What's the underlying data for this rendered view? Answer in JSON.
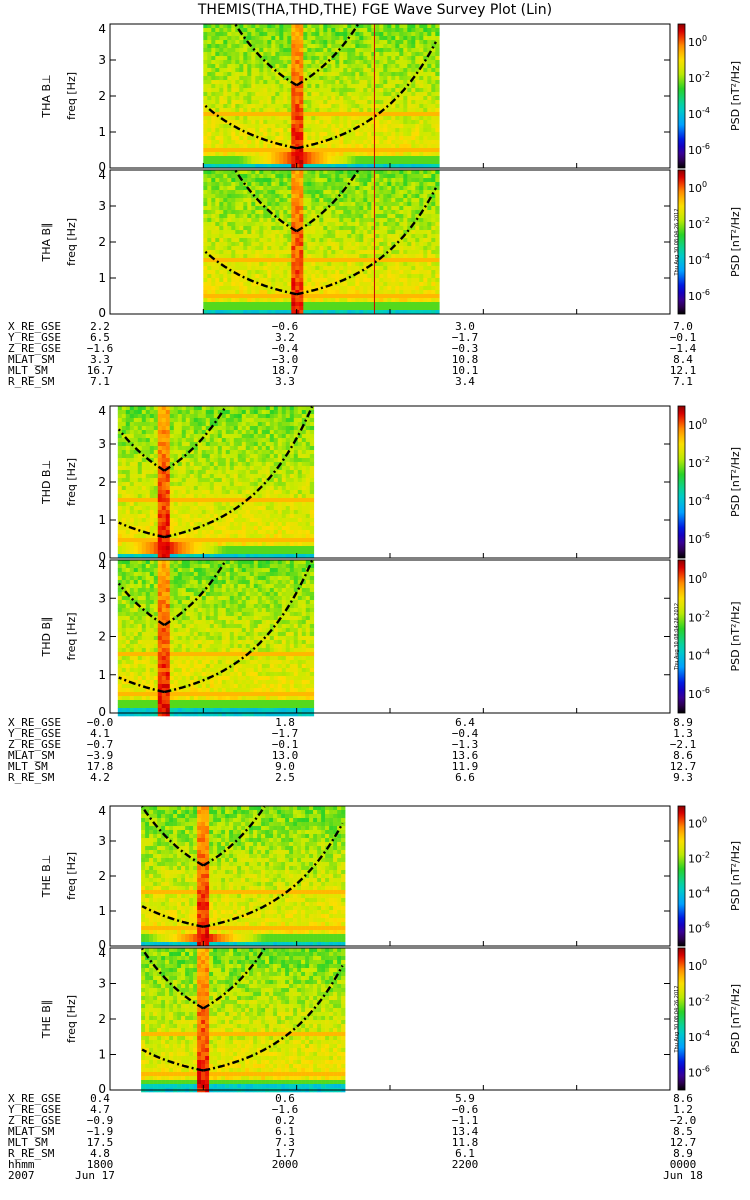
{
  "title": "THEMIS(THA,THD,THE) FGE Wave Survey Plot (Lin)",
  "colors": {
    "low": "#00c8c8",
    "mid": "#9ae600",
    "high": "#ffd200",
    "peak": "#e60000",
    "dark": "#7a0000"
  },
  "colorbar": {
    "label": "PSD [nT²/Hz]",
    "ticks": [
      {
        "base": "10",
        "exp": "0",
        "value": 0
      },
      {
        "base": "10",
        "exp": "-2",
        "value": -2
      },
      {
        "base": "10",
        "exp": "-4",
        "value": -4
      },
      {
        "base": "10",
        "exp": "-6",
        "value": -6
      }
    ],
    "stamp": "Thu Aug 30 08:04:26 2012"
  },
  "time_axis": {
    "start_hhmm": 1800,
    "end_hhmm": 2400,
    "tick_labels": [
      "1800",
      "2000",
      "2200",
      "0000"
    ],
    "row_label": "hhmm",
    "year_label": "2007",
    "date_start": "Jun 17",
    "date_end": "Jun 18"
  },
  "chart_data": [
    {
      "type": "heatmap",
      "ylabel": "THA B⊥",
      "ylabel2": "freq [Hz]",
      "ylim": [
        0,
        4
      ],
      "yticks": [
        "0",
        "1",
        "2",
        "3",
        "4"
      ],
      "data_span_hhmm": [
        1900,
        2130
      ],
      "lobe_center_hhmm": 2000,
      "spike_hhmm": 2000,
      "marker_hhmm": 2050,
      "colorbar_range": [
        -7,
        1
      ]
    },
    {
      "type": "heatmap",
      "ylabel": "THA B∥",
      "ylabel2": "freq [Hz]",
      "ylim": [
        0,
        4
      ],
      "yticks": [
        "0",
        "1",
        "2",
        "3",
        "4"
      ],
      "data_span_hhmm": [
        1900,
        2130
      ],
      "lobe_center_hhmm": 2000,
      "spike_hhmm": 2000,
      "marker_hhmm": 2050,
      "colorbar_range": [
        -7,
        1
      ]
    },
    {
      "type": "heatmap",
      "ylabel": "THD B⊥",
      "ylabel2": "freq [Hz]",
      "ylim": [
        0,
        4
      ],
      "yticks": [
        "0",
        "1",
        "2",
        "3",
        "4"
      ],
      "data_span_hhmm": [
        1805,
        2010
      ],
      "lobe_center_hhmm": 1835,
      "spike_hhmm": 1835,
      "colorbar_range": [
        -7,
        1
      ]
    },
    {
      "type": "heatmap",
      "ylabel": "THD B∥",
      "ylabel2": "freq [Hz]",
      "ylim": [
        0,
        4
      ],
      "yticks": [
        "0",
        "1",
        "2",
        "3",
        "4"
      ],
      "data_span_hhmm": [
        1805,
        2010
      ],
      "lobe_center_hhmm": 1835,
      "spike_hhmm": 1835,
      "colorbar_range": [
        -7,
        1
      ]
    },
    {
      "type": "heatmap",
      "ylabel": "THE B⊥",
      "ylabel2": "freq [Hz]",
      "ylim": [
        0,
        4
      ],
      "yticks": [
        "0",
        "1",
        "2",
        "3",
        "4"
      ],
      "data_span_hhmm": [
        1820,
        2030
      ],
      "lobe_center_hhmm": 1900,
      "spike_hhmm": 1900,
      "colorbar_range": [
        -7,
        1
      ]
    },
    {
      "type": "heatmap",
      "ylabel": "THE B∥",
      "ylabel2": "freq [Hz]",
      "ylim": [
        0,
        4
      ],
      "yticks": [
        "0",
        "1",
        "2",
        "3",
        "4"
      ],
      "data_span_hhmm": [
        1820,
        2030
      ],
      "lobe_center_hhmm": 1900,
      "spike_hhmm": 1900,
      "colorbar_range": [
        -7,
        1
      ]
    }
  ],
  "ephemeris": [
    {
      "rows": [
        {
          "label": "X_RE_GSE",
          "values": [
            "2.2",
            "−0.6",
            "3.0",
            "7.0"
          ]
        },
        {
          "label": "Y_RE_GSE",
          "values": [
            "6.5",
            "3.2",
            "−1.7",
            "−0.1"
          ]
        },
        {
          "label": "Z_RE_GSE",
          "values": [
            "−1.6",
            "−0.4",
            "−0.3",
            "−1.4"
          ]
        },
        {
          "label": "MLAT_SM",
          "values": [
            "3.3",
            "−3.0",
            "10.8",
            "8.4"
          ]
        },
        {
          "label": "MLT_SM",
          "values": [
            "16.7",
            "18.7",
            "10.1",
            "12.1"
          ]
        },
        {
          "label": "R_RE_SM",
          "values": [
            "7.1",
            "3.3",
            "3.4",
            "7.1"
          ]
        }
      ]
    },
    {
      "rows": [
        {
          "label": "X_RE_GSE",
          "values": [
            "−0.0",
            "1.8",
            "6.4",
            "8.9"
          ]
        },
        {
          "label": "Y_RE_GSE",
          "values": [
            "4.1",
            "−1.7",
            "−0.4",
            "1.3"
          ]
        },
        {
          "label": "Z_RE_GSE",
          "values": [
            "−0.7",
            "−0.1",
            "−1.3",
            "−2.1"
          ]
        },
        {
          "label": "MLAT_SM",
          "values": [
            "−3.9",
            "13.0",
            "13.6",
            "8.6"
          ]
        },
        {
          "label": "MLT_SM",
          "values": [
            "17.8",
            "9.0",
            "11.9",
            "12.7"
          ]
        },
        {
          "label": "R_RE_SM",
          "values": [
            "4.2",
            "2.5",
            "6.6",
            "9.3"
          ]
        }
      ]
    },
    {
      "rows": [
        {
          "label": "X_RE_GSE",
          "values": [
            "0.4",
            "0.6",
            "5.9",
            "8.6"
          ]
        },
        {
          "label": "Y_RE_GSE",
          "values": [
            "4.7",
            "−1.6",
            "−0.6",
            "1.2"
          ]
        },
        {
          "label": "Z_RE_GSE",
          "values": [
            "−0.9",
            "0.2",
            "−1.1",
            "−2.0"
          ]
        },
        {
          "label": "MLAT_SM",
          "values": [
            "−1.9",
            "6.1",
            "13.4",
            "8.5"
          ]
        },
        {
          "label": "MLT_SM",
          "values": [
            "17.5",
            "7.3",
            "11.8",
            "12.7"
          ]
        },
        {
          "label": "R_RE_SM",
          "values": [
            "4.8",
            "1.7",
            "6.1",
            "8.9"
          ]
        }
      ]
    }
  ]
}
